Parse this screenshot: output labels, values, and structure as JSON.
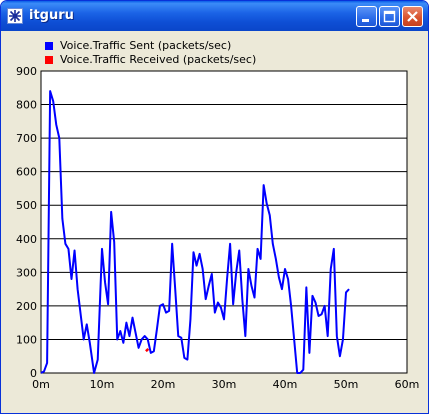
{
  "window": {
    "title": "itguru",
    "icon": "itguru-app-icon",
    "buttons": [
      "minimize-icon",
      "maximize-icon",
      "close-icon"
    ]
  },
  "legend": [
    {
      "label": "Voice.Traffic Sent (packets/sec)",
      "color": "#0000ff"
    },
    {
      "label": "Voice.Traffic Received (packets/sec)",
      "color": "#ff0000"
    }
  ],
  "chart_data": {
    "type": "line",
    "title": "",
    "xlabel": "",
    "ylabel": "",
    "xlim": [
      0,
      60
    ],
    "ylim": [
      0,
      900
    ],
    "x_ticks": [
      0,
      10,
      20,
      30,
      40,
      50,
      60
    ],
    "x_tick_labels": [
      "0m",
      "10m",
      "20m",
      "30m",
      "40m",
      "50m",
      "60m"
    ],
    "y_ticks": [
      0,
      100,
      200,
      300,
      400,
      500,
      600,
      700,
      800,
      900
    ],
    "y_tick_labels": [
      "0",
      "100",
      "200",
      "300",
      "400",
      "500",
      "600",
      "700",
      "800",
      "900"
    ],
    "grid": "horizontal",
    "legend_position": "top-left",
    "series": [
      {
        "name": "Voice.Traffic Sent (packets/sec)",
        "color": "#0000ff",
        "points": [
          [
            0,
            0
          ],
          [
            0.5,
            5
          ],
          [
            1,
            30
          ],
          [
            1.5,
            840
          ],
          [
            2,
            810
          ],
          [
            2.5,
            740
          ],
          [
            3,
            700
          ],
          [
            3.5,
            460
          ],
          [
            4,
            385
          ],
          [
            4.5,
            370
          ],
          [
            5,
            280
          ],
          [
            5.5,
            365
          ],
          [
            6,
            250
          ],
          [
            7,
            100
          ],
          [
            7.5,
            145
          ],
          [
            8,
            90
          ],
          [
            8.7,
            0
          ],
          [
            9.3,
            40
          ],
          [
            10,
            370
          ],
          [
            10.5,
            270
          ],
          [
            11,
            205
          ],
          [
            11.5,
            480
          ],
          [
            12,
            390
          ],
          [
            12.5,
            100
          ],
          [
            13,
            125
          ],
          [
            13.5,
            90
          ],
          [
            14,
            150
          ],
          [
            14.5,
            110
          ],
          [
            15,
            165
          ],
          [
            15.5,
            120
          ],
          [
            16,
            75
          ],
          [
            16.5,
            100
          ],
          [
            17,
            110
          ],
          [
            17.5,
            100
          ],
          [
            18,
            60
          ],
          [
            18.5,
            65
          ],
          [
            19,
            130
          ],
          [
            19.5,
            200
          ],
          [
            20,
            205
          ],
          [
            20.5,
            180
          ],
          [
            21,
            185
          ],
          [
            21.5,
            385
          ],
          [
            22,
            250
          ],
          [
            22.5,
            110
          ],
          [
            23,
            105
          ],
          [
            23.5,
            45
          ],
          [
            24,
            40
          ],
          [
            24.5,
            160
          ],
          [
            25,
            360
          ],
          [
            25.5,
            320
          ],
          [
            26,
            355
          ],
          [
            26.5,
            310
          ],
          [
            27,
            220
          ],
          [
            27.5,
            260
          ],
          [
            28,
            295
          ],
          [
            28.5,
            180
          ],
          [
            29,
            210
          ],
          [
            29.5,
            195
          ],
          [
            30,
            160
          ],
          [
            30.5,
            280
          ],
          [
            31,
            385
          ],
          [
            31.5,
            205
          ],
          [
            32,
            300
          ],
          [
            32.5,
            365
          ],
          [
            33,
            220
          ],
          [
            33.5,
            110
          ],
          [
            34,
            310
          ],
          [
            34.5,
            260
          ],
          [
            35,
            225
          ],
          [
            35.5,
            370
          ],
          [
            36,
            340
          ],
          [
            36.5,
            560
          ],
          [
            37,
            505
          ],
          [
            37.5,
            470
          ],
          [
            38,
            385
          ],
          [
            38.5,
            340
          ],
          [
            39,
            285
          ],
          [
            39.5,
            250
          ],
          [
            40,
            310
          ],
          [
            40.5,
            280
          ],
          [
            41,
            200
          ],
          [
            41.5,
            100
          ],
          [
            42,
            0
          ],
          [
            42.5,
            0
          ],
          [
            43,
            10
          ],
          [
            43.5,
            255
          ],
          [
            44,
            60
          ],
          [
            44.5,
            230
          ],
          [
            45,
            210
          ],
          [
            45.5,
            170
          ],
          [
            46,
            175
          ],
          [
            46.5,
            200
          ],
          [
            47,
            110
          ],
          [
            47.5,
            310
          ],
          [
            48,
            370
          ],
          [
            48.5,
            110
          ],
          [
            49,
            50
          ],
          [
            49.5,
            100
          ],
          [
            50,
            240
          ],
          [
            50.5,
            250
          ]
        ]
      },
      {
        "name": "Voice.Traffic Received (packets/sec)",
        "color": "#ff0000",
        "points": [
          [
            17.2,
            65
          ],
          [
            17.6,
            72
          ]
        ]
      }
    ]
  }
}
